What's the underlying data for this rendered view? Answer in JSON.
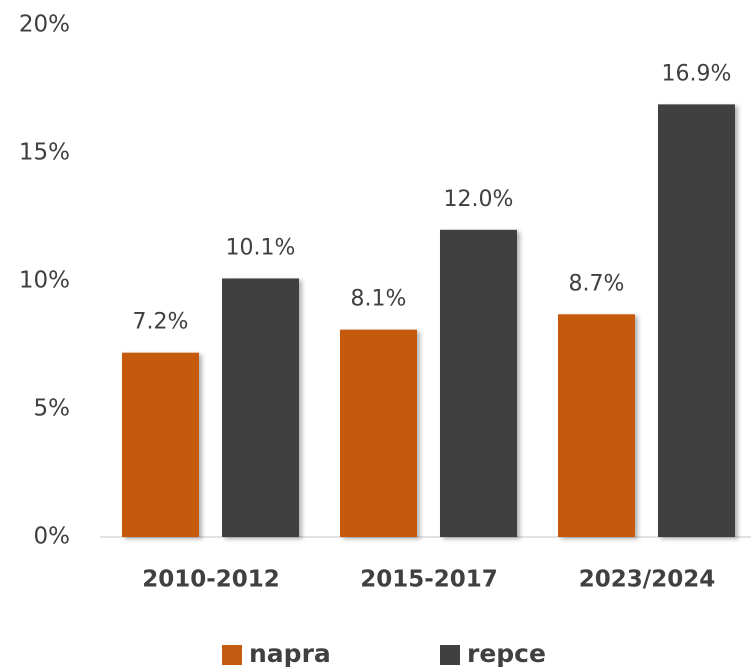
{
  "chart_data": {
    "type": "bar",
    "categories": [
      "2010-2012",
      "2015-2017",
      "2023/2024"
    ],
    "series": [
      {
        "name": "napra",
        "color": "#c55a11",
        "values": [
          7.2,
          8.1,
          8.7
        ],
        "value_labels": [
          "7.2%",
          "8.1%",
          "8.7%"
        ]
      },
      {
        "name": "repce",
        "color": "#404040",
        "values": [
          10.1,
          12.0,
          16.9
        ],
        "value_labels": [
          "10.1%",
          "12.0%",
          "16.9%"
        ]
      }
    ],
    "ylim": [
      0,
      20
    ],
    "yticks": [
      {
        "value": 0,
        "label": "0%"
      },
      {
        "value": 5,
        "label": "5%"
      },
      {
        "value": 10,
        "label": "10%"
      },
      {
        "value": 15,
        "label": "15%"
      },
      {
        "value": 20,
        "label": "20%"
      }
    ],
    "grid": false,
    "legend": "bottom"
  }
}
